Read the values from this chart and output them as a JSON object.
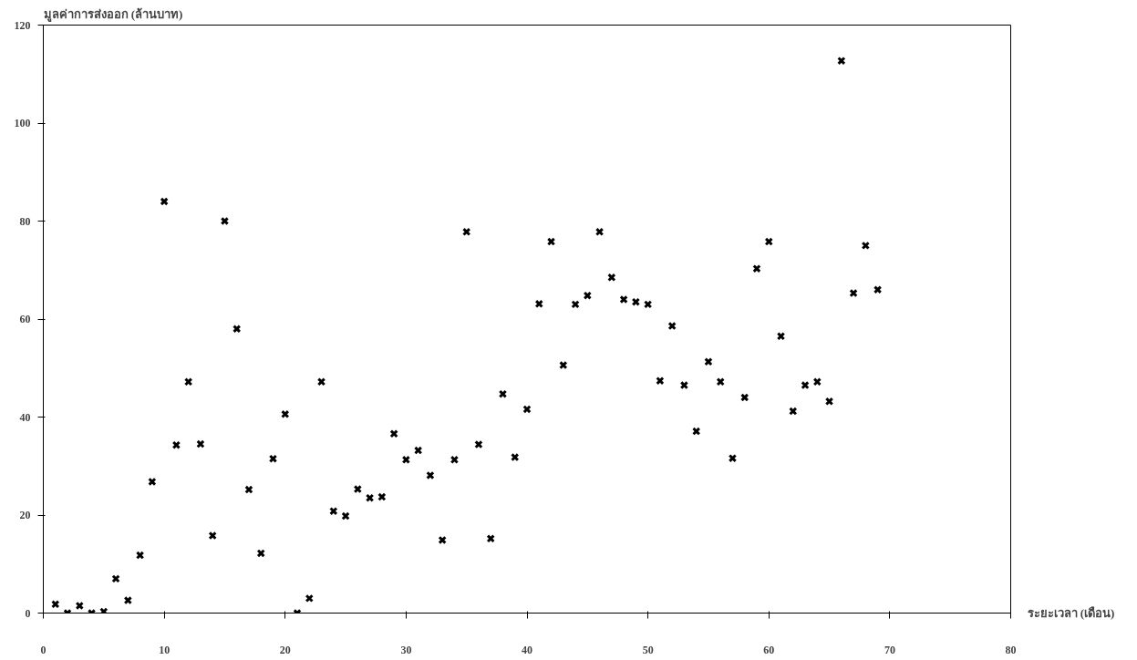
{
  "chart_data": {
    "type": "scatter",
    "ylabel": "มูลค่าการส่งออก (ล้านบาท)",
    "xlabel": "ระยะเวลา (เดือน)",
    "x": [
      1,
      2,
      3,
      4,
      5,
      6,
      7,
      8,
      9,
      10,
      11,
      12,
      13,
      14,
      15,
      16,
      17,
      18,
      19,
      20,
      21,
      22,
      23,
      24,
      25,
      26,
      27,
      28,
      29,
      30,
      31,
      32,
      33,
      34,
      35,
      36,
      37,
      38,
      39,
      40,
      41,
      42,
      43,
      44,
      45,
      46,
      47,
      48,
      49,
      50,
      51,
      52,
      53,
      54,
      55,
      56,
      57,
      58,
      59,
      60,
      61,
      62,
      63,
      64,
      65,
      66,
      67,
      68,
      69
    ],
    "series": [
      {
        "color": "#000000",
        "values": [
          1.8,
          0,
          1.5,
          0,
          0.3,
          7,
          2.6,
          11.8,
          26.8,
          84,
          34.3,
          47.2,
          34.5,
          15.8,
          80,
          58,
          25.2,
          12.2,
          31.5,
          40.6,
          0,
          3,
          47.2,
          20.8,
          19.8,
          25.3,
          23.5,
          23.7,
          36.6,
          31.3,
          33.2,
          28.1,
          14.9,
          31.3,
          77.8,
          34.4,
          15.2,
          44.7,
          31.8,
          41.6,
          63.1,
          75.8,
          50.6,
          63,
          64.8,
          77.8,
          68.5,
          64,
          63.5,
          63,
          47.4,
          58.6,
          46.5,
          37.1,
          51.3,
          47.2,
          31.6,
          44,
          70.3,
          75.8,
          56.5,
          41.2,
          46.5,
          47.2,
          43.2,
          112.7,
          65.3,
          75,
          66
        ]
      }
    ],
    "marker": "cross",
    "xlim": [
      0,
      80
    ],
    "ylim": [
      0,
      120
    ],
    "xticks": [
      0,
      10,
      20,
      30,
      40,
      50,
      60,
      70,
      80
    ],
    "yticks": [
      0,
      20,
      40,
      60,
      80,
      100,
      120
    ],
    "grid": false
  }
}
